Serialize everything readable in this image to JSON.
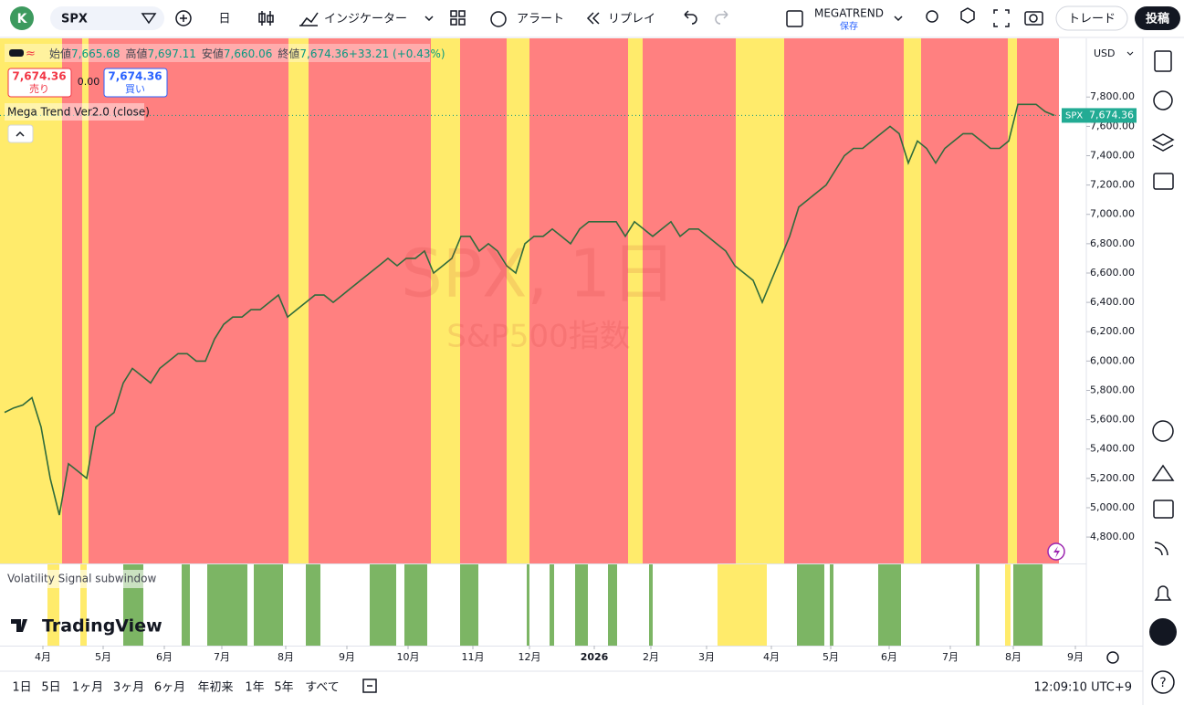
{
  "toolbar": {
    "avatar": "K",
    "symbol": "SPX",
    "interval": "日",
    "indicators": "インジケーター",
    "alert": "アラート",
    "replay": "リプレイ",
    "layout_name": "MEGATREND",
    "layout_state": "保存",
    "trade": "トレード",
    "publish": "投稿"
  },
  "legend": {
    "ohlc": [
      {
        "label": "始値",
        "value": "7,665.68"
      },
      {
        "label": "高値",
        "value": "7,697.11"
      },
      {
        "label": "安値",
        "value": "7,660.06"
      },
      {
        "label": "終値",
        "value": "7,674.36"
      },
      {
        "label": "",
        "value": "+33.21 (+0.43%)"
      }
    ],
    "sell_price": "7,674.36",
    "sell": "売り",
    "spread": "0.00",
    "buy_price": "7,674.36",
    "buy": "買い",
    "indicator": "Mega Trend Ver2.0 (close)"
  },
  "watermark": {
    "title": "SPX, 1日",
    "subtitle": "S&P500指数"
  },
  "branding": "TradingView",
  "bottom_bar": {
    "ranges": [
      "1日",
      "5日",
      "1ヶ月",
      "3ヶ月",
      "6ヶ月",
      "年初来",
      "1年",
      "5年",
      "すべて"
    ],
    "clock": "12:09:10 UTC+9"
  },
  "chart_data": {
    "type": "line",
    "color": "#2f6b3c",
    "values": [
      5650,
      5680,
      5700,
      5750,
      5550,
      5200,
      4950,
      5300,
      5250,
      5200,
      5550,
      5600,
      5650,
      5850,
      5950,
      5900,
      5850,
      5950,
      6000,
      6050,
      6050,
      6000,
      6000,
      6150,
      6250,
      6300,
      6300,
      6350,
      6350,
      6400,
      6450,
      6300,
      6350,
      6400,
      6450,
      6450,
      6400,
      6450,
      6500,
      6550,
      6600,
      6650,
      6700,
      6650,
      6700,
      6700,
      6750,
      6600,
      6650,
      6700,
      6850,
      6850,
      6750,
      6800,
      6750,
      6650,
      6600,
      6800,
      6850,
      6850,
      6900,
      6850,
      6800,
      6900,
      6950,
      6950,
      6950,
      6950,
      6850,
      6950,
      6900,
      6850,
      6900,
      6950,
      6850,
      6900,
      6900,
      6850,
      6800,
      6750,
      6650,
      6600,
      6550,
      6400,
      6550,
      6700,
      6850,
      7050,
      7100,
      7150,
      7200,
      7300,
      7400,
      7450,
      7450,
      7500,
      7550,
      7600,
      7550,
      7350,
      7500,
      7450,
      7350,
      7450,
      7500,
      7550,
      7550,
      7500,
      7450,
      7450,
      7500,
      7750,
      7750,
      7750,
      7700,
      7674.36
    ],
    "xlim": [
      0,
      116
    ],
    "ylim": [
      4620,
      8200
    ],
    "yticks": [
      {
        "value": 4800,
        "label": "4,800.00"
      },
      {
        "value": 5000,
        "label": "5,000.00"
      },
      {
        "value": 5200,
        "label": "5,200.00"
      },
      {
        "value": 5400,
        "label": "5,400.00"
      },
      {
        "value": 5600,
        "label": "5,600.00"
      },
      {
        "value": 5800,
        "label": "5,800.00"
      },
      {
        "value": 6000,
        "label": "6,000.00"
      },
      {
        "value": 6200,
        "label": "6,200.00"
      },
      {
        "value": 6400,
        "label": "6,400.00"
      },
      {
        "value": 6600,
        "label": "6,600.00"
      },
      {
        "value": 6800,
        "label": "6,800.00"
      },
      {
        "value": 7000,
        "label": "7,000.00"
      },
      {
        "value": 7200,
        "label": "7,200.00"
      },
      {
        "value": 7400,
        "label": "7,400.00"
      },
      {
        "value": 7600,
        "label": "7,600.00"
      },
      {
        "value": 7800,
        "label": "7,800.00"
      }
    ],
    "xticks": [
      {
        "value": 4.7,
        "label": "4月"
      },
      {
        "value": 11.3,
        "label": "5月"
      },
      {
        "value": 18,
        "label": "6月"
      },
      {
        "value": 24.3,
        "label": "7月"
      },
      {
        "value": 31.3,
        "label": "8月"
      },
      {
        "value": 38,
        "label": "9月"
      },
      {
        "value": 44.7,
        "label": "10月"
      },
      {
        "value": 51.8,
        "label": "11月"
      },
      {
        "value": 58,
        "label": "12月"
      },
      {
        "value": 65.1,
        "label": "2026"
      },
      {
        "value": 71.3,
        "label": "2月"
      },
      {
        "value": 77.4,
        "label": "3月"
      },
      {
        "value": 84.5,
        "label": "4月"
      },
      {
        "value": 91,
        "label": "5月"
      },
      {
        "value": 97.4,
        "label": "6月"
      },
      {
        "value": 104.1,
        "label": "7月"
      },
      {
        "value": 111,
        "label": "8月"
      },
      {
        "value": 117.8,
        "label": "9月"
      }
    ],
    "bands": [
      {
        "start": 0,
        "end": 6.8,
        "color": "#ffeb6b"
      },
      {
        "start": 6.8,
        "end": 9,
        "color": "#ff8080"
      },
      {
        "start": 9,
        "end": 9.7,
        "color": "#ffeb6b"
      },
      {
        "start": 9.7,
        "end": 31.6,
        "color": "#ff8080"
      },
      {
        "start": 31.6,
        "end": 33.8,
        "color": "#ffeb6b"
      },
      {
        "start": 33.8,
        "end": 47.2,
        "color": "#ff8080"
      },
      {
        "start": 47.2,
        "end": 50.4,
        "color": "#ffeb6b"
      },
      {
        "start": 50.4,
        "end": 55.5,
        "color": "#ff8080"
      },
      {
        "start": 55.5,
        "end": 58,
        "color": "#ffeb6b"
      },
      {
        "start": 58,
        "end": 68.8,
        "color": "#ff8080"
      },
      {
        "start": 68.8,
        "end": 70.4,
        "color": "#ffeb6b"
      },
      {
        "start": 70.4,
        "end": 80.6,
        "color": "#ff8080"
      },
      {
        "start": 80.6,
        "end": 85.9,
        "color": "#ffeb6b"
      },
      {
        "start": 85.9,
        "end": 99,
        "color": "#ff8080"
      },
      {
        "start": 99,
        "end": 100.9,
        "color": "#ffeb6b"
      },
      {
        "start": 100.9,
        "end": 110.4,
        "color": "#ff8080"
      },
      {
        "start": 110.4,
        "end": 111.4,
        "color": "#ffeb6b"
      },
      {
        "start": 111.4,
        "end": 116,
        "color": "#ff8080"
      }
    ],
    "currency": "USD",
    "last_price": {
      "symbol": "SPX",
      "label": "7,674.36"
    },
    "subwindow": {
      "title": "Volatility Signal subwindow",
      "bands": [
        {
          "start": 5.2,
          "end": 6.5,
          "color": "#ffeb6b"
        },
        {
          "start": 8.8,
          "end": 9.5,
          "color": "#ffeb6b"
        },
        {
          "start": 13.5,
          "end": 15.7,
          "color": "#7cb564"
        },
        {
          "start": 19.9,
          "end": 20.8,
          "color": "#7cb564"
        },
        {
          "start": 22.7,
          "end": 27.1,
          "color": "#7cb564"
        },
        {
          "start": 27.8,
          "end": 31,
          "color": "#7cb564"
        },
        {
          "start": 33.5,
          "end": 35.1,
          "color": "#7cb564"
        },
        {
          "start": 40.5,
          "end": 43.4,
          "color": "#7cb564"
        },
        {
          "start": 44.3,
          "end": 46.8,
          "color": "#7cb564"
        },
        {
          "start": 50.4,
          "end": 52.4,
          "color": "#7cb564"
        },
        {
          "start": 57.7,
          "end": 58,
          "color": "#7cb564"
        },
        {
          "start": 60.2,
          "end": 60.7,
          "color": "#7cb564"
        },
        {
          "start": 63,
          "end": 64.4,
          "color": "#7cb564"
        },
        {
          "start": 66.6,
          "end": 67.6,
          "color": "#7cb564"
        },
        {
          "start": 71.1,
          "end": 71.5,
          "color": "#7cb564"
        },
        {
          "start": 78.6,
          "end": 84,
          "color": "#ffeb6b"
        },
        {
          "start": 87.3,
          "end": 90.3,
          "color": "#7cb564"
        },
        {
          "start": 90.9,
          "end": 91.3,
          "color": "#7cb564"
        },
        {
          "start": 96.2,
          "end": 98.7,
          "color": "#7cb564"
        },
        {
          "start": 106.9,
          "end": 107.3,
          "color": "#7cb564"
        },
        {
          "start": 110.1,
          "end": 110.7,
          "color": "#ffeb6b"
        },
        {
          "start": 111,
          "end": 114.2,
          "color": "#7cb564"
        }
      ]
    }
  }
}
